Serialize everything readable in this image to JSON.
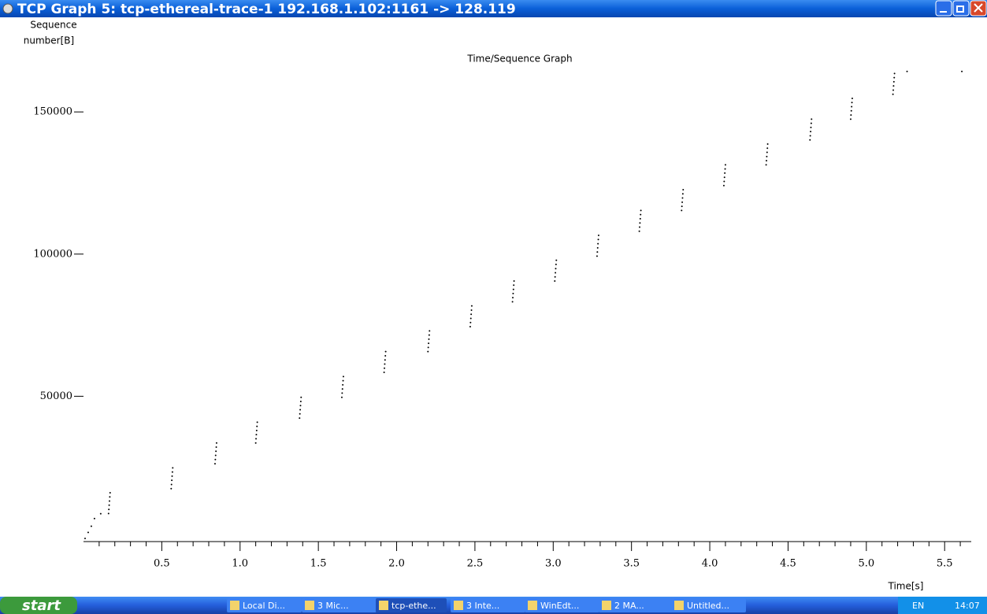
{
  "window": {
    "title": "TCP Graph 5: tcp-ethereal-trace-1 192.168.1.102:1161 -> 128.119"
  },
  "chart_data": {
    "type": "scatter",
    "title": "Time/Sequence Graph",
    "ylabel": [
      "Sequence",
      "number[B]"
    ],
    "xlabel": "Time[s]",
    "xlim": [
      0,
      5.67
    ],
    "ylim": [
      0,
      165000
    ],
    "xticks": [
      {
        "value": 0.5,
        "label": "0.5"
      },
      {
        "value": 1,
        "label": "1.0"
      },
      {
        "value": 1.5,
        "label": "1.5"
      },
      {
        "value": 2,
        "label": "2.0"
      },
      {
        "value": 2.5,
        "label": "2.5"
      },
      {
        "value": 3,
        "label": "3.0"
      },
      {
        "value": 3.5,
        "label": "3.5"
      },
      {
        "value": 4,
        "label": "4.0"
      },
      {
        "value": 4.5,
        "label": "4.5"
      },
      {
        "value": 5,
        "label": "5.0"
      },
      {
        "value": 5.5,
        "label": "5.5"
      }
    ],
    "xminorticks": [
      0.1,
      0.2,
      0.3,
      0.4,
      0.6,
      0.7,
      0.8,
      0.9,
      1.1,
      1.2,
      1.3,
      1.4,
      1.6,
      1.7,
      1.8,
      1.9,
      2.1,
      2.2,
      2.3,
      2.4,
      2.6,
      2.7,
      2.8,
      2.9,
      3.1,
      3.2,
      3.3,
      3.4,
      3.6,
      3.7,
      3.8,
      3.9,
      4.1,
      4.2,
      4.3,
      4.4,
      4.6,
      4.7,
      4.8,
      4.9,
      5.1,
      5.2,
      5.3,
      5.4,
      5.6
    ],
    "yticks": [
      50000,
      100000,
      150000
    ],
    "series": [
      {
        "color": "#000000",
        "x": [
          0.01,
          0.03,
          0.05,
          0.07,
          0.11,
          0.16,
          0.162,
          0.164,
          0.166,
          0.168,
          0.17,
          0.56,
          0.562,
          0.564,
          0.566,
          0.568,
          0.57,
          0.84,
          0.842,
          0.844,
          0.846,
          0.848,
          0.85,
          1.1,
          1.102,
          1.104,
          1.106,
          1.108,
          1.11,
          1.38,
          1.382,
          1.384,
          1.386,
          1.388,
          1.39,
          1.65,
          1.652,
          1.654,
          1.656,
          1.658,
          1.66,
          1.92,
          1.922,
          1.924,
          1.926,
          1.928,
          1.93,
          2.2,
          2.202,
          2.204,
          2.206,
          2.208,
          2.21,
          2.47,
          2.472,
          2.474,
          2.476,
          2.478,
          2.48,
          2.74,
          2.742,
          2.744,
          2.746,
          2.748,
          2.75,
          3.01,
          3.012,
          3.014,
          3.016,
          3.018,
          3.02,
          3.28,
          3.282,
          3.284,
          3.286,
          3.288,
          3.29,
          3.55,
          3.552,
          3.554,
          3.556,
          3.558,
          3.56,
          3.82,
          3.822,
          3.824,
          3.826,
          3.828,
          3.83,
          4.09,
          4.092,
          4.094,
          4.096,
          4.098,
          4.1,
          4.36,
          4.362,
          4.364,
          4.366,
          4.368,
          4.37,
          4.64,
          4.642,
          4.644,
          4.646,
          4.648,
          4.65,
          4.9,
          4.902,
          4.904,
          4.906,
          4.908,
          4.91,
          5.17,
          5.172,
          5.174,
          5.176,
          5.178,
          5.18,
          5.26,
          5.61
        ],
        "y": [
          0,
          2100,
          4300,
          7000,
          8700,
          8760,
          10220,
          11680,
          13140,
          14600,
          16060,
          17520,
          18980,
          20440,
          21900,
          23360,
          24820,
          26280,
          27740,
          29200,
          30660,
          32120,
          33580,
          33580,
          35040,
          36500,
          37960,
          39420,
          40880,
          42340,
          43800,
          45260,
          46720,
          48180,
          49640,
          49640,
          51100,
          52560,
          54020,
          55480,
          56940,
          58400,
          59860,
          61320,
          62780,
          64240,
          65700,
          65700,
          67160,
          68620,
          70080,
          71540,
          73000,
          74460,
          75920,
          77380,
          78840,
          80300,
          81760,
          83220,
          84680,
          86140,
          87600,
          89060,
          90520,
          90520,
          91980,
          93440,
          94900,
          96360,
          97820,
          99280,
          100740,
          102200,
          103660,
          105120,
          106580,
          108040,
          109500,
          110960,
          112420,
          113880,
          115340,
          115340,
          116800,
          118260,
          119720,
          121180,
          122640,
          124100,
          125560,
          127020,
          128480,
          129940,
          131400,
          131400,
          132860,
          134320,
          135780,
          137240,
          138700,
          140160,
          141620,
          143080,
          144540,
          146000,
          147460,
          147460,
          148920,
          150380,
          151840,
          153300,
          154760,
          156220,
          157680,
          159140,
          160600,
          162060,
          163520,
          164250,
          164250
        ]
      }
    ]
  },
  "taskbar": {
    "start": "start",
    "items": [
      "Local Di...",
      "3 Mic...",
      "tcp-ethe...",
      "3 Inte...",
      "WinEdt...",
      "2 MA...",
      "Untitled..."
    ],
    "language": "EN",
    "clock": "14:07"
  }
}
